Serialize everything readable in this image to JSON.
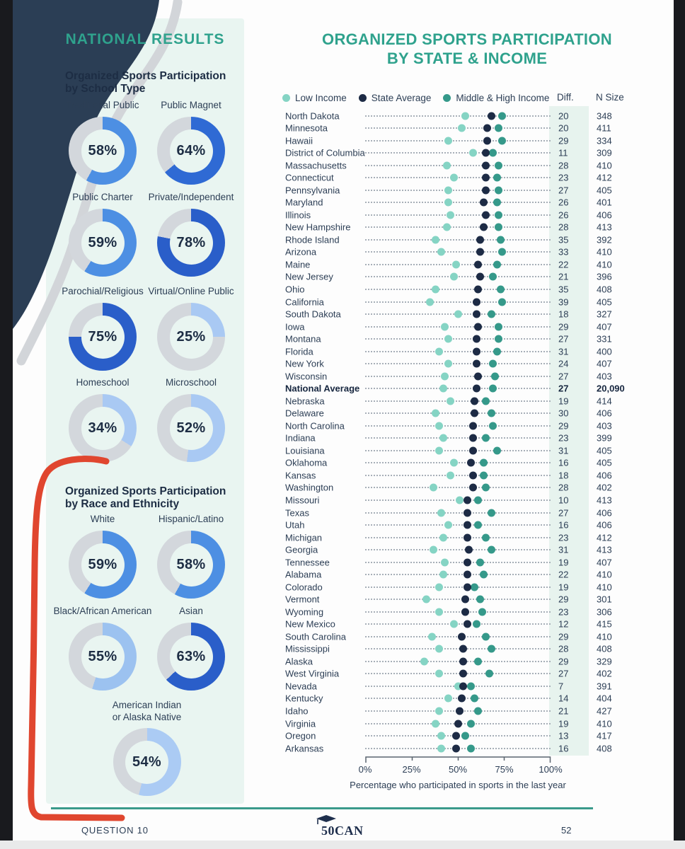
{
  "page": {
    "question_label": "QUESTION 10",
    "page_number": "52",
    "logo_text": "50CAN"
  },
  "left_panel": {
    "title": "NATIONAL RESULTS",
    "school_section": {
      "heading_line1": "Organized Sports Participation",
      "heading_line2": "by School Type"
    },
    "race_section": {
      "heading_line1": "Organized Sports Participation",
      "heading_line2": "by Race and Ethnicity"
    }
  },
  "chart": {
    "title_line1": "ORGANIZED SPORTS PARTICIPATION",
    "title_line2": "BY STATE & INCOME",
    "diff_header": "Diff.",
    "n_header": "N Size",
    "legend": [
      {
        "label": "Low Income",
        "color": "#85d4c4"
      },
      {
        "label": "State Average",
        "color": "#1d2b45"
      },
      {
        "label": "Middle & High Income",
        "color": "#35998a"
      }
    ],
    "axis": {
      "tick_labels": [
        "0%",
        "25%",
        "50%",
        "75%",
        "100%"
      ],
      "caption": "Percentage who participated in sports in the last year"
    }
  },
  "colors": {
    "teal_heading": "#2fa28d",
    "navy_text": "#1d2d44",
    "mint_panel": "#e9f5f1",
    "donut_track": "#d3d7dc",
    "low_income_dot": "#85d4c4",
    "state_average_dot": "#1d2b45",
    "middle_high_dot": "#35998a",
    "red_annotation": "#e0462f"
  },
  "chart_data": [
    {
      "id": "school_type",
      "type": "donut",
      "title": "Organized Sports Participation by School Type",
      "categories": [
        "Traditional Public",
        "Public Magnet",
        "Public Charter",
        "Private/Independent",
        "Parochial/Religious",
        "Virtual/Online Public",
        "Homeschool",
        "Microschool"
      ],
      "values": [
        58,
        64,
        59,
        78,
        75,
        25,
        34,
        52
      ],
      "display": [
        "58%",
        "64%",
        "59%",
        "78%",
        "75%",
        "25%",
        "34%",
        "52%"
      ],
      "colors": [
        "#4d8fe3",
        "#2f6ad4",
        "#4d8fe3",
        "#2a5ec9",
        "#2a5ec9",
        "#a9c9f3",
        "#a9c9f3",
        "#a9c9f3"
      ]
    },
    {
      "id": "race_ethnicity",
      "type": "donut",
      "title": "Organized Sports Participation by Race and Ethnicity",
      "categories": [
        "White",
        "Hispanic/Latino",
        "Black/African American",
        "Asian",
        "American Indian or Alaska Native"
      ],
      "label_lines": [
        [
          "White"
        ],
        [
          "Hispanic/Latino"
        ],
        [
          "Black/African American"
        ],
        [
          "Asian"
        ],
        [
          "American Indian",
          "or Alaska Native"
        ]
      ],
      "values": [
        59,
        58,
        55,
        63,
        54
      ],
      "display": [
        "59%",
        "58%",
        "55%",
        "63%",
        "54%"
      ],
      "colors": [
        "#4d8fe3",
        "#4d8fe3",
        "#9cc2f0",
        "#2a5ec9",
        "#abcbf4"
      ]
    },
    {
      "id": "state_income",
      "type": "scatter",
      "title": "Organized Sports Participation by State & Income",
      "xlabel": "Percentage who participated in sports in the last year",
      "xlim": [
        0,
        100
      ],
      "x_ticks": [
        0,
        25,
        50,
        75,
        100
      ],
      "series_names": [
        "Low Income",
        "State Average",
        "Middle & High Income"
      ],
      "rows": [
        {
          "state": "North Dakota",
          "low": 54,
          "avg": 68,
          "high": 74,
          "diff": 20,
          "n": "348",
          "bold": false
        },
        {
          "state": "Minnesota",
          "low": 52,
          "avg": 66,
          "high": 72,
          "diff": 20,
          "n": "411",
          "bold": false
        },
        {
          "state": "Hawaii",
          "low": 45,
          "avg": 66,
          "high": 74,
          "diff": 29,
          "n": "334",
          "bold": false
        },
        {
          "state": "District of Columbia",
          "low": 58,
          "avg": 65,
          "high": 69,
          "diff": 11,
          "n": "309",
          "bold": false
        },
        {
          "state": "Massachusetts",
          "low": 44,
          "avg": 65,
          "high": 72,
          "diff": 28,
          "n": "410",
          "bold": false
        },
        {
          "state": "Connecticut",
          "low": 48,
          "avg": 65,
          "high": 71,
          "diff": 23,
          "n": "412",
          "bold": false
        },
        {
          "state": "Pennsylvania",
          "low": 45,
          "avg": 65,
          "high": 72,
          "diff": 27,
          "n": "405",
          "bold": false
        },
        {
          "state": "Maryland",
          "low": 45,
          "avg": 64,
          "high": 71,
          "diff": 26,
          "n": "401",
          "bold": false
        },
        {
          "state": "Illinois",
          "low": 46,
          "avg": 65,
          "high": 72,
          "diff": 26,
          "n": "406",
          "bold": false
        },
        {
          "state": "New Hampshire",
          "low": 44,
          "avg": 64,
          "high": 72,
          "diff": 28,
          "n": "413",
          "bold": false
        },
        {
          "state": "Rhode Island",
          "low": 38,
          "avg": 62,
          "high": 73,
          "diff": 35,
          "n": "392",
          "bold": false
        },
        {
          "state": "Arizona",
          "low": 41,
          "avg": 62,
          "high": 74,
          "diff": 33,
          "n": "410",
          "bold": false
        },
        {
          "state": "Maine",
          "low": 49,
          "avg": 61,
          "high": 71,
          "diff": 22,
          "n": "410",
          "bold": false
        },
        {
          "state": "New Jersey",
          "low": 48,
          "avg": 62,
          "high": 69,
          "diff": 21,
          "n": "396",
          "bold": false
        },
        {
          "state": "Ohio",
          "low": 38,
          "avg": 61,
          "high": 73,
          "diff": 35,
          "n": "408",
          "bold": false
        },
        {
          "state": "California",
          "low": 35,
          "avg": 60,
          "high": 74,
          "diff": 39,
          "n": "405",
          "bold": false
        },
        {
          "state": "South Dakota",
          "low": 50,
          "avg": 60,
          "high": 68,
          "diff": 18,
          "n": "327",
          "bold": false
        },
        {
          "state": "Iowa",
          "low": 43,
          "avg": 61,
          "high": 72,
          "diff": 29,
          "n": "407",
          "bold": false
        },
        {
          "state": "Montana",
          "low": 45,
          "avg": 60,
          "high": 72,
          "diff": 27,
          "n": "331",
          "bold": false
        },
        {
          "state": "Florida",
          "low": 40,
          "avg": 60,
          "high": 71,
          "diff": 31,
          "n": "400",
          "bold": false
        },
        {
          "state": "New York",
          "low": 45,
          "avg": 60,
          "high": 69,
          "diff": 24,
          "n": "407",
          "bold": false
        },
        {
          "state": "Wisconsin",
          "low": 43,
          "avg": 61,
          "high": 70,
          "diff": 27,
          "n": "403",
          "bold": false
        },
        {
          "state": "National Average",
          "low": 42,
          "avg": 60,
          "high": 69,
          "diff": 27,
          "n": "20,090",
          "bold": true
        },
        {
          "state": "Nebraska",
          "low": 46,
          "avg": 59,
          "high": 65,
          "diff": 19,
          "n": "414",
          "bold": false
        },
        {
          "state": "Delaware",
          "low": 38,
          "avg": 59,
          "high": 68,
          "diff": 30,
          "n": "406",
          "bold": false
        },
        {
          "state": "North Carolina",
          "low": 40,
          "avg": 58,
          "high": 69,
          "diff": 29,
          "n": "403",
          "bold": false
        },
        {
          "state": "Indiana",
          "low": 42,
          "avg": 58,
          "high": 65,
          "diff": 23,
          "n": "399",
          "bold": false
        },
        {
          "state": "Louisiana",
          "low": 40,
          "avg": 58,
          "high": 71,
          "diff": 31,
          "n": "405",
          "bold": false
        },
        {
          "state": "Oklahoma",
          "low": 48,
          "avg": 57,
          "high": 64,
          "diff": 16,
          "n": "405",
          "bold": false
        },
        {
          "state": "Kansas",
          "low": 46,
          "avg": 58,
          "high": 64,
          "diff": 18,
          "n": "406",
          "bold": false
        },
        {
          "state": "Washington",
          "low": 37,
          "avg": 58,
          "high": 65,
          "diff": 28,
          "n": "402",
          "bold": false
        },
        {
          "state": "Missouri",
          "low": 51,
          "avg": 55,
          "high": 61,
          "diff": 10,
          "n": "413",
          "bold": false
        },
        {
          "state": "Texas",
          "low": 41,
          "avg": 55,
          "high": 68,
          "diff": 27,
          "n": "406",
          "bold": false
        },
        {
          "state": "Utah",
          "low": 45,
          "avg": 55,
          "high": 61,
          "diff": 16,
          "n": "406",
          "bold": false
        },
        {
          "state": "Michigan",
          "low": 42,
          "avg": 55,
          "high": 65,
          "diff": 23,
          "n": "412",
          "bold": false
        },
        {
          "state": "Georgia",
          "low": 37,
          "avg": 56,
          "high": 68,
          "diff": 31,
          "n": "413",
          "bold": false
        },
        {
          "state": "Tennessee",
          "low": 43,
          "avg": 55,
          "high": 62,
          "diff": 19,
          "n": "407",
          "bold": false
        },
        {
          "state": "Alabama",
          "low": 42,
          "avg": 55,
          "high": 64,
          "diff": 22,
          "n": "410",
          "bold": false
        },
        {
          "state": "Colorado",
          "low": 40,
          "avg": 55,
          "high": 59,
          "diff": 19,
          "n": "410",
          "bold": false
        },
        {
          "state": "Vermont",
          "low": 33,
          "avg": 54,
          "high": 62,
          "diff": 29,
          "n": "301",
          "bold": false
        },
        {
          "state": "Wyoming",
          "low": 40,
          "avg": 54,
          "high": 63,
          "diff": 23,
          "n": "306",
          "bold": false
        },
        {
          "state": "New Mexico",
          "low": 48,
          "avg": 55,
          "high": 60,
          "diff": 12,
          "n": "415",
          "bold": false
        },
        {
          "state": "South Carolina",
          "low": 36,
          "avg": 52,
          "high": 65,
          "diff": 29,
          "n": "410",
          "bold": false
        },
        {
          "state": "Mississippi",
          "low": 40,
          "avg": 53,
          "high": 68,
          "diff": 28,
          "n": "408",
          "bold": false
        },
        {
          "state": "Alaska",
          "low": 32,
          "avg": 53,
          "high": 61,
          "diff": 29,
          "n": "329",
          "bold": false
        },
        {
          "state": "West Virginia",
          "low": 40,
          "avg": 53,
          "high": 67,
          "diff": 27,
          "n": "402",
          "bold": false
        },
        {
          "state": "Nevada",
          "low": 50,
          "avg": 53,
          "high": 57,
          "diff": 7,
          "n": "391",
          "bold": false
        },
        {
          "state": "Kentucky",
          "low": 45,
          "avg": 52,
          "high": 59,
          "diff": 14,
          "n": "404",
          "bold": false
        },
        {
          "state": "Idaho",
          "low": 40,
          "avg": 51,
          "high": 61,
          "diff": 21,
          "n": "427",
          "bold": false
        },
        {
          "state": "Virginia",
          "low": 38,
          "avg": 50,
          "high": 57,
          "diff": 19,
          "n": "410",
          "bold": false
        },
        {
          "state": "Oregon",
          "low": 41,
          "avg": 49,
          "high": 54,
          "diff": 13,
          "n": "417",
          "bold": false
        },
        {
          "state": "Arkansas",
          "low": 41,
          "avg": 49,
          "high": 57,
          "diff": 16,
          "n": "408",
          "bold": false
        }
      ]
    }
  ]
}
